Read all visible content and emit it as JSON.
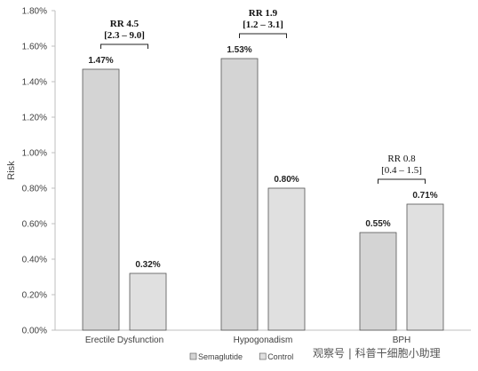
{
  "chart_data": {
    "type": "bar",
    "title": "",
    "xlabel": "",
    "ylabel": "Risk",
    "ylim": [
      0,
      1.8
    ],
    "yticks": [
      "0.00%",
      "0.20%",
      "0.40%",
      "0.60%",
      "0.80%",
      "1.00%",
      "1.20%",
      "1.40%",
      "1.60%",
      "1.80%"
    ],
    "categories": [
      "Erectile Dysfunction",
      "Hypogonadism",
      "BPH"
    ],
    "series": [
      {
        "name": "Semaglutide",
        "values": [
          1.47,
          1.53,
          0.55
        ],
        "labels": [
          "1.47%",
          "1.53%",
          "0.55%"
        ],
        "color": "#d4d4d4"
      },
      {
        "name": "Control",
        "values": [
          0.32,
          0.8,
          0.71
        ],
        "labels": [
          "0.32%",
          "0.80%",
          "0.71%"
        ],
        "color": "#e0e0e0"
      }
    ],
    "annotations": [
      {
        "category": "Erectile Dysfunction",
        "rr": "RR 4.5",
        "ci": "[2.3 – 9.0]",
        "bold": true
      },
      {
        "category": "Hypogonadism",
        "rr": "RR 1.9",
        "ci": "[1.2 – 3.1]",
        "bold": true
      },
      {
        "category": "BPH",
        "rr": "RR 0.8",
        "ci": "[0.4 – 1.5]",
        "bold": false
      }
    ],
    "legend_position": "bottom",
    "grid": false
  },
  "watermark": "观察号 | 科普干细胞小助理"
}
